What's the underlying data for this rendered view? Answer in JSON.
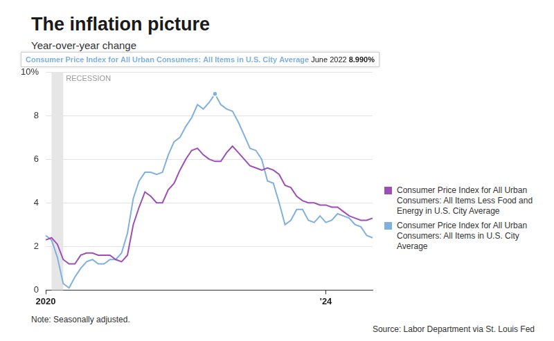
{
  "chart_data": {
    "type": "line",
    "title": "The inflation picture",
    "subtitle": "Year-over-year change",
    "note": "Note: Seasonally adjusted.",
    "source": "Source: Labor Department via St. Louis Fed",
    "categories": [
      "2020",
      null,
      null,
      null,
      null,
      null,
      null,
      null,
      null,
      null,
      null,
      null,
      null,
      null,
      null,
      null,
      null,
      null,
      null,
      null,
      null,
      null,
      null,
      null,
      null,
      null,
      null,
      null,
      null,
      null,
      null,
      null,
      null,
      null,
      null,
      null,
      null,
      null,
      null,
      null,
      null,
      null,
      null,
      null,
      null,
      null,
      null,
      null,
      "'24",
      null,
      null,
      null,
      null,
      null,
      null,
      null,
      null
    ],
    "series": [
      {
        "name": "Consumer Price Index for All Urban Consumers: All Items Less Food and Energy in U.S. City Average",
        "color": "#9b4fb5",
        "values": [
          2.3,
          2.4,
          2.1,
          1.4,
          1.2,
          1.2,
          1.6,
          1.7,
          1.7,
          1.6,
          1.6,
          1.6,
          1.4,
          1.3,
          1.6,
          3.0,
          3.8,
          4.5,
          4.3,
          4.0,
          4.0,
          4.6,
          4.9,
          5.5,
          6.0,
          6.4,
          6.5,
          6.2,
          6.0,
          5.9,
          5.9,
          6.3,
          6.6,
          6.3,
          6.0,
          5.7,
          5.6,
          5.5,
          5.6,
          5.5,
          5.3,
          4.8,
          4.7,
          4.3,
          4.1,
          4.0,
          4.0,
          3.9,
          3.9,
          3.8,
          3.8,
          3.6,
          3.4,
          3.3,
          3.2,
          3.2,
          3.3
        ]
      },
      {
        "name": "Consumer Price Index for All Urban Consumers: All Items in U.S. City Average",
        "color": "#7fb0de",
        "values": [
          2.5,
          2.3,
          1.5,
          0.3,
          0.1,
          0.6,
          1.0,
          1.3,
          1.4,
          1.2,
          1.2,
          1.4,
          1.4,
          1.7,
          2.6,
          4.2,
          5.0,
          5.4,
          5.4,
          5.3,
          5.4,
          6.2,
          6.8,
          7.0,
          7.5,
          7.9,
          8.5,
          8.3,
          8.6,
          8.99,
          8.5,
          8.3,
          8.2,
          7.7,
          7.1,
          6.5,
          6.4,
          6.0,
          5.0,
          4.9,
          4.0,
          3.0,
          3.2,
          3.7,
          3.7,
          3.2,
          3.1,
          3.4,
          3.1,
          3.2,
          3.5,
          3.4,
          3.3,
          3.0,
          2.9,
          2.5,
          2.4
        ]
      }
    ],
    "ylim": [
      0,
      10
    ],
    "yticks": [
      0,
      2,
      4,
      6,
      8,
      {
        "value": 10,
        "label": "10%"
      }
    ],
    "grid": true,
    "legend": "right",
    "recession": {
      "label": "RECESSION",
      "start": 1,
      "end": 3
    },
    "tooltip": {
      "series": 1,
      "index": 29,
      "label": "June 2022",
      "value": 8.99,
      "value_label": "8.990%"
    }
  }
}
